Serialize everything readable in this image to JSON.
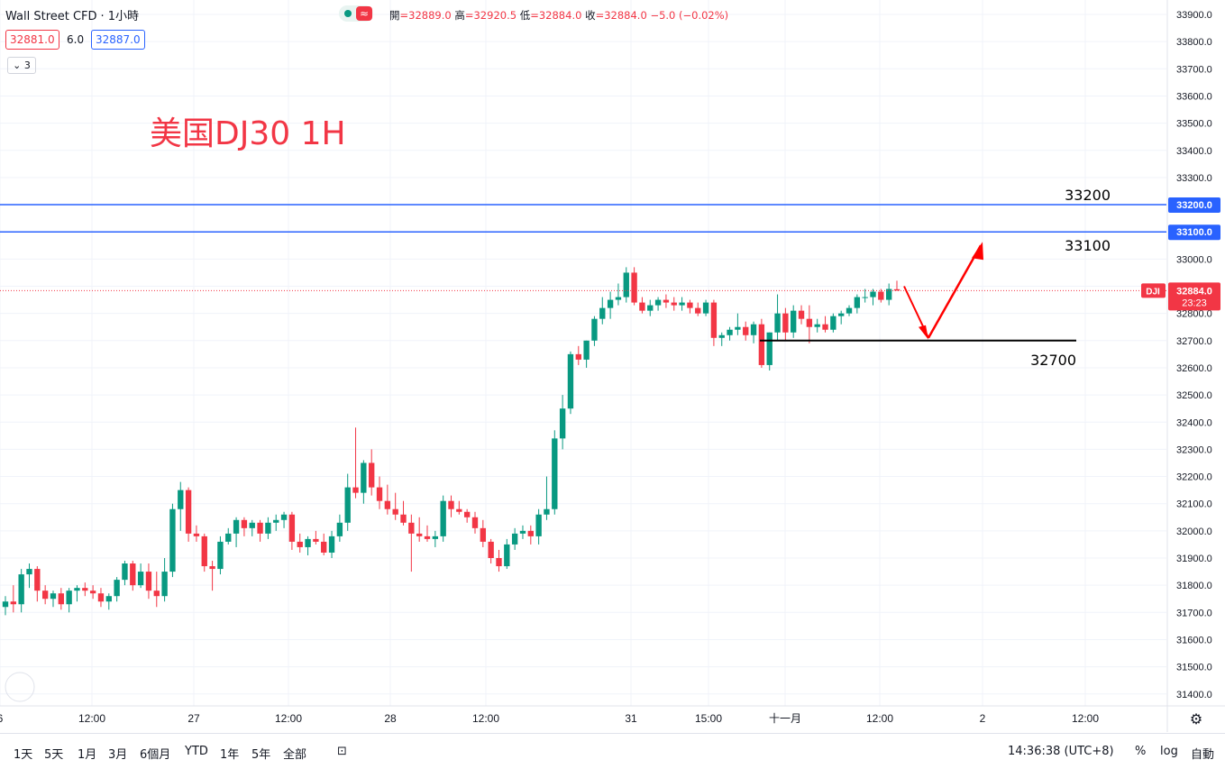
{
  "header": {
    "symbol": "Wall Street CFD",
    "separator": "·",
    "interval": "1小時",
    "open_label": "開",
    "open": "=32889.0",
    "high_label": "高",
    "high": "=32920.5",
    "low_label": "低",
    "low": "=32884.0",
    "close_label": "收",
    "close": "=32884.0",
    "change": "−5.0 (−0.02%)",
    "bid": "32881.0",
    "spread": "6.0",
    "ask": "32887.0",
    "indicators_count": "3",
    "pill_label": "≈"
  },
  "chart_data": {
    "type": "candlestick",
    "title": "美国DJ30 1H",
    "ylim": [
      31400,
      33950
    ],
    "price_scale_ticks": [
      31400,
      31500,
      31600,
      31700,
      31800,
      31900,
      32000,
      32100,
      32200,
      32300,
      32400,
      32500,
      32600,
      32700,
      32800,
      32900,
      33000,
      33100,
      33200,
      33300,
      33400,
      33500,
      33600,
      33700,
      33800,
      33900
    ],
    "x_tick_labels": [
      "6",
      "12:00",
      "27",
      "12:00",
      "28",
      "12:00",
      "31",
      "15:00",
      "十一月",
      "12:00",
      "2",
      "12:00"
    ],
    "candles": [
      [
        31720,
        31760,
        31690,
        31740
      ],
      [
        31740,
        31800,
        31700,
        31730
      ],
      [
        31730,
        31860,
        31700,
        31840
      ],
      [
        31840,
        31880,
        31790,
        31860
      ],
      [
        31860,
        31870,
        31740,
        31780
      ],
      [
        31780,
        31800,
        31730,
        31750
      ],
      [
        31750,
        31780,
        31720,
        31770
      ],
      [
        31770,
        31790,
        31710,
        31730
      ],
      [
        31730,
        31790,
        31700,
        31780
      ],
      [
        31780,
        31800,
        31740,
        31790
      ],
      [
        31790,
        31810,
        31760,
        31780
      ],
      [
        31780,
        31800,
        31750,
        31770
      ],
      [
        31770,
        31790,
        31720,
        31740
      ],
      [
        31740,
        31770,
        31710,
        31760
      ],
      [
        31760,
        31830,
        31740,
        31820
      ],
      [
        31820,
        31890,
        31800,
        31880
      ],
      [
        31880,
        31890,
        31780,
        31800
      ],
      [
        31800,
        31880,
        31790,
        31850
      ],
      [
        31850,
        31880,
        31750,
        31780
      ],
      [
        31780,
        31850,
        31720,
        31760
      ],
      [
        31760,
        31900,
        31740,
        31850
      ],
      [
        31850,
        32100,
        31830,
        32080
      ],
      [
        32080,
        32180,
        32000,
        32150
      ],
      [
        32150,
        32160,
        31960,
        31990
      ],
      [
        31990,
        32020,
        31960,
        31980
      ],
      [
        31980,
        31990,
        31850,
        31870
      ],
      [
        31870,
        31890,
        31780,
        31860
      ],
      [
        31860,
        31980,
        31840,
        31960
      ],
      [
        31960,
        32010,
        31950,
        31990
      ],
      [
        31990,
        32050,
        31940,
        32040
      ],
      [
        32040,
        32050,
        31980,
        32010
      ],
      [
        32010,
        32040,
        31980,
        32030
      ],
      [
        32030,
        32040,
        31960,
        31990
      ],
      [
        31990,
        32050,
        31970,
        32030
      ],
      [
        32030,
        32060,
        32000,
        32040
      ],
      [
        32040,
        32070,
        32010,
        32060
      ],
      [
        32060,
        32070,
        31930,
        31960
      ],
      [
        31960,
        31990,
        31920,
        31940
      ],
      [
        31940,
        31980,
        31910,
        31970
      ],
      [
        31970,
        32000,
        31950,
        31960
      ],
      [
        31960,
        31990,
        31910,
        31920
      ],
      [
        31920,
        32000,
        31900,
        31980
      ],
      [
        31980,
        32060,
        31960,
        32030
      ],
      [
        32030,
        32210,
        32000,
        32160
      ],
      [
        32160,
        32380,
        32120,
        32140
      ],
      [
        32140,
        32260,
        32100,
        32250
      ],
      [
        32250,
        32300,
        32130,
        32160
      ],
      [
        32160,
        32200,
        32080,
        32110
      ],
      [
        32110,
        32170,
        32060,
        32080
      ],
      [
        32080,
        32140,
        32040,
        32060
      ],
      [
        32060,
        32110,
        32020,
        32030
      ],
      [
        32030,
        32060,
        31850,
        31990
      ],
      [
        31990,
        32050,
        31960,
        31980
      ],
      [
        31980,
        32020,
        31960,
        31970
      ],
      [
        31970,
        32000,
        31940,
        31980
      ],
      [
        31980,
        32130,
        31960,
        32110
      ],
      [
        32110,
        32130,
        32050,
        32080
      ],
      [
        32080,
        32110,
        32060,
        32070
      ],
      [
        32070,
        32080,
        32030,
        32050
      ],
      [
        32050,
        32070,
        31990,
        32010
      ],
      [
        32010,
        32040,
        31940,
        31960
      ],
      [
        31960,
        31970,
        31880,
        31900
      ],
      [
        31900,
        31930,
        31850,
        31870
      ],
      [
        31870,
        31970,
        31860,
        31950
      ],
      [
        31950,
        32010,
        31930,
        31990
      ],
      [
        31990,
        32020,
        31970,
        32000
      ],
      [
        32000,
        32020,
        31950,
        31980
      ],
      [
        31980,
        32080,
        31950,
        32060
      ],
      [
        32060,
        32200,
        32040,
        32080
      ],
      [
        32080,
        32370,
        32060,
        32340
      ],
      [
        32340,
        32500,
        32300,
        32450
      ],
      [
        32450,
        32660,
        32430,
        32650
      ],
      [
        32650,
        32680,
        32610,
        32630
      ],
      [
        32630,
        32700,
        32600,
        32700
      ],
      [
        32700,
        32790,
        32680,
        32780
      ],
      [
        32780,
        32860,
        32760,
        32820
      ],
      [
        32820,
        32880,
        32780,
        32850
      ],
      [
        32850,
        32910,
        32830,
        32860
      ],
      [
        32860,
        32970,
        32840,
        32950
      ],
      [
        32950,
        32970,
        32830,
        32840
      ],
      [
        32840,
        32860,
        32800,
        32810
      ],
      [
        32810,
        32850,
        32790,
        32830
      ],
      [
        32830,
        32860,
        32810,
        32850
      ],
      [
        32850,
        32870,
        32820,
        32840
      ],
      [
        32840,
        32860,
        32810,
        32830
      ],
      [
        32830,
        32860,
        32810,
        32840
      ],
      [
        32840,
        32850,
        32800,
        32820
      ],
      [
        32820,
        32840,
        32790,
        32800
      ],
      [
        32800,
        32850,
        32790,
        32840
      ],
      [
        32840,
        32850,
        32680,
        32710
      ],
      [
        32710,
        32730,
        32680,
        32720
      ],
      [
        32720,
        32750,
        32700,
        32740
      ],
      [
        32740,
        32800,
        32720,
        32750
      ],
      [
        32750,
        32770,
        32700,
        32720
      ],
      [
        32720,
        32770,
        32690,
        32760
      ],
      [
        32760,
        32780,
        32600,
        32610
      ],
      [
        32610,
        32730,
        32590,
        32730
      ],
      [
        32730,
        32870,
        32700,
        32800
      ],
      [
        32800,
        32820,
        32700,
        32730
      ],
      [
        32730,
        32830,
        32710,
        32810
      ],
      [
        32810,
        32830,
        32760,
        32780
      ],
      [
        32780,
        32830,
        32690,
        32750
      ],
      [
        32750,
        32780,
        32730,
        32760
      ],
      [
        32760,
        32790,
        32730,
        32740
      ],
      [
        32740,
        32800,
        32730,
        32790
      ],
      [
        32790,
        32810,
        32760,
        32800
      ],
      [
        32800,
        32830,
        32790,
        32820
      ],
      [
        32820,
        32870,
        32800,
        32860
      ],
      [
        32860,
        32890,
        32840,
        32860
      ],
      [
        32860,
        32890,
        32830,
        32880
      ],
      [
        32880,
        32890,
        32840,
        32850
      ],
      [
        32850,
        32910,
        32830,
        32890
      ],
      [
        32889,
        32920.5,
        32884,
        32884
      ]
    ],
    "levels": [
      {
        "label": "33200",
        "value": 33200,
        "axis_tag": "33200.0"
      },
      {
        "label": "33100",
        "value": 33100,
        "axis_tag": "33100.0"
      },
      {
        "label": "32700",
        "value": 32700
      }
    ],
    "last_price": {
      "symbol_tag": "DJI",
      "value": 32884,
      "value_label": "32884.0",
      "countdown": "23:23"
    },
    "projection_arrows": [
      {
        "from": 32900,
        "to": 32710
      },
      {
        "from": 32710,
        "to": 33050
      }
    ],
    "colors": {
      "up": "#089981",
      "down": "#f23645",
      "level_line": "#2962ff",
      "support_line": "#000000",
      "arrow": "#ff0000"
    }
  },
  "bottom_toolbar": {
    "ranges": [
      "1天",
      "5天",
      "1月",
      "3月",
      "6個月",
      "YTD",
      "1年",
      "5年",
      "全部"
    ],
    "time": "14:36:38 (UTC+8)",
    "percent": "%",
    "log": "log",
    "auto": "自動"
  }
}
